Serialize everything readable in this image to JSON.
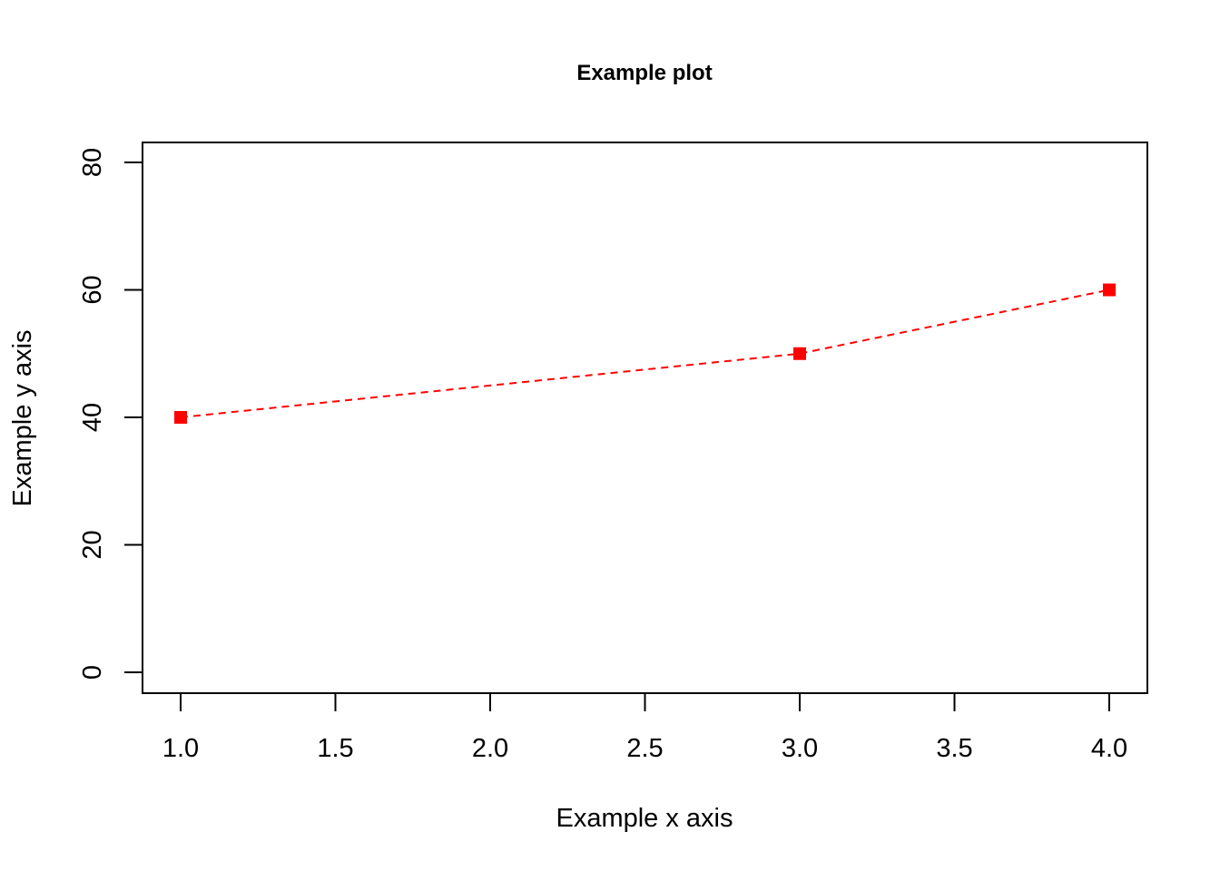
{
  "chart_data": {
    "type": "line",
    "title": "Example plot",
    "xlabel": "Example x axis",
    "ylabel": "Example y axis",
    "x": [
      1,
      3,
      4
    ],
    "series": [
      {
        "values": [
          40,
          50,
          60
        ],
        "color": "#ff0000",
        "line_style": "dashed",
        "marker": "filled-square"
      }
    ],
    "xlim": [
      1,
      4
    ],
    "ylim": [
      0,
      80
    ],
    "x_ticks": [
      "1.0",
      "1.5",
      "2.0",
      "2.5",
      "3.0",
      "3.5",
      "4.0"
    ],
    "y_ticks": [
      "0",
      "20",
      "40",
      "60",
      "80"
    ],
    "grid": false,
    "legend": "none"
  }
}
